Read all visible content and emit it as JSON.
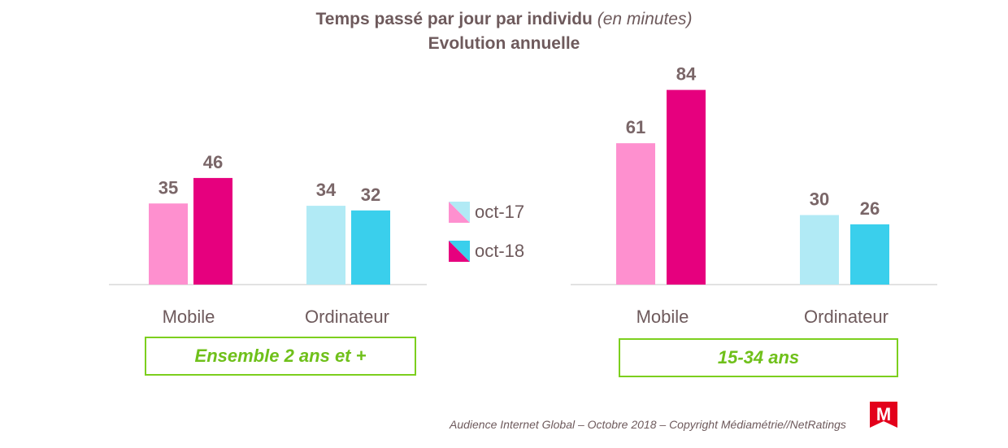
{
  "title": {
    "line1_main": "Temps passé par jour par individu",
    "line1_italic": "(en minutes)",
    "line2": "Evolution annuelle"
  },
  "legend": [
    {
      "label": "oct-17"
    },
    {
      "label": "oct-18"
    }
  ],
  "colors": {
    "mobile_oct17": "#fe90cf",
    "mobile_oct18": "#e6007e",
    "ordi_oct17": "#b1eaf5",
    "ordi_oct18": "#3acfec",
    "value_text": "#7a6668",
    "axis_text": "#6e5a5c",
    "group_border": "#7ccf1e",
    "logo_red": "#e3001b"
  },
  "chart_data": [
    {
      "type": "bar",
      "group_label": "Ensemble 2 ans et +",
      "categories": [
        "Mobile",
        "Ordinateur"
      ],
      "series": [
        {
          "name": "oct-17",
          "values": [
            35,
            34
          ]
        },
        {
          "name": "oct-18",
          "values": [
            46,
            32
          ]
        }
      ],
      "ylim": [
        0,
        90
      ],
      "grid": false
    },
    {
      "type": "bar",
      "group_label": "15-34 ans",
      "categories": [
        "Mobile",
        "Ordinateur"
      ],
      "series": [
        {
          "name": "oct-17",
          "values": [
            61,
            30
          ]
        },
        {
          "name": "oct-18",
          "values": [
            84,
            26
          ]
        }
      ],
      "ylim": [
        0,
        90
      ],
      "grid": false
    }
  ],
  "footer": "Audience Internet Global – Octobre 2018 – Copyright Médiamétrie//NetRatings",
  "logo": {
    "icon": "mediametrie-logo",
    "letter": "M"
  }
}
